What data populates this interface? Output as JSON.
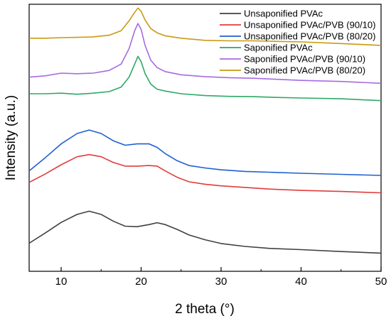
{
  "chart_data": {
    "type": "line",
    "xlabel": "2 theta (°)",
    "ylabel": "Intensity (a.u.)",
    "xlim": [
      6,
      50
    ],
    "x_ticks": [
      10,
      20,
      30,
      40,
      50
    ],
    "y_ticks_shown": false,
    "ylim": [
      0,
      100
    ],
    "grid": false,
    "legend_position": "top-right",
    "series": [
      {
        "name": "Unsaponified PVAc",
        "color": "#404040",
        "points": [
          [
            6,
            10.5
          ],
          [
            8,
            14.3
          ],
          [
            10,
            18.3
          ],
          [
            12,
            21.3
          ],
          [
            13.5,
            22.5
          ],
          [
            15,
            21.3
          ],
          [
            16.5,
            18.8
          ],
          [
            18,
            16.9
          ],
          [
            19.5,
            16.7
          ],
          [
            21,
            17.5
          ],
          [
            22,
            18.2
          ],
          [
            23,
            17.5
          ],
          [
            24.5,
            15.7
          ],
          [
            26,
            13.6
          ],
          [
            28,
            11.8
          ],
          [
            30,
            10.4
          ],
          [
            33,
            9.3
          ],
          [
            36,
            8.6
          ],
          [
            40,
            8.1
          ],
          [
            45,
            7.4
          ],
          [
            50,
            6.8
          ]
        ]
      },
      {
        "name": "Unsaponified PVAc/PVB (90/10)",
        "color": "#e03c3c",
        "points": [
          [
            6,
            33.3
          ],
          [
            8,
            36.4
          ],
          [
            10,
            39.9
          ],
          [
            12,
            42.9
          ],
          [
            13.5,
            43.7
          ],
          [
            15,
            42.9
          ],
          [
            16.5,
            40.8
          ],
          [
            18,
            39.4
          ],
          [
            19.5,
            39.4
          ],
          [
            21,
            39.6
          ],
          [
            22,
            39.4
          ],
          [
            23,
            37.6
          ],
          [
            24.5,
            35.2
          ],
          [
            26,
            33.5
          ],
          [
            28,
            32.6
          ],
          [
            30,
            32.0
          ],
          [
            33,
            31.4
          ],
          [
            36,
            30.8
          ],
          [
            40,
            30.3
          ],
          [
            45,
            29.9
          ],
          [
            50,
            29.4
          ]
        ]
      },
      {
        "name": "Unsaponified PVAc/PVB (80/20)",
        "color": "#1f5fd0",
        "points": [
          [
            6,
            37.6
          ],
          [
            8,
            42.5
          ],
          [
            10,
            47.7
          ],
          [
            12,
            51.6
          ],
          [
            13.5,
            52.9
          ],
          [
            15,
            51.6
          ],
          [
            16.5,
            48.9
          ],
          [
            18,
            47.2
          ],
          [
            19.5,
            47.7
          ],
          [
            21,
            47.7
          ],
          [
            22,
            46.4
          ],
          [
            23,
            44.1
          ],
          [
            24.5,
            41.4
          ],
          [
            26,
            39.6
          ],
          [
            28,
            38.7
          ],
          [
            30,
            38.0
          ],
          [
            33,
            37.4
          ],
          [
            36,
            37.1
          ],
          [
            40,
            36.7
          ],
          [
            45,
            36.3
          ],
          [
            50,
            35.9
          ]
        ]
      },
      {
        "name": "Saponified PVAc",
        "color": "#2ea866",
        "points": [
          [
            6,
            66.5
          ],
          [
            8,
            66.5
          ],
          [
            10,
            66.7
          ],
          [
            12,
            66.3
          ],
          [
            14,
            66.7
          ],
          [
            16,
            67.3
          ],
          [
            17.5,
            69.0
          ],
          [
            18.5,
            72.7
          ],
          [
            19.2,
            77.6
          ],
          [
            19.6,
            80.5
          ],
          [
            20.0,
            78.5
          ],
          [
            20.5,
            74.0
          ],
          [
            21.2,
            70.1
          ],
          [
            22,
            68.2
          ],
          [
            23,
            67.5
          ],
          [
            25,
            66.5
          ],
          [
            28,
            65.8
          ],
          [
            31,
            65.5
          ],
          [
            34,
            65.4
          ],
          [
            37,
            65.1
          ],
          [
            40,
            64.9
          ],
          [
            45,
            64.6
          ],
          [
            50,
            63.9
          ]
        ]
      },
      {
        "name": "Saponified PVAc/PVB (90/10)",
        "color": "#a86ae0",
        "points": [
          [
            6,
            72.7
          ],
          [
            8,
            73.2
          ],
          [
            10,
            74.2
          ],
          [
            12,
            74.0
          ],
          [
            14,
            74.2
          ],
          [
            16,
            75.2
          ],
          [
            17.5,
            77.6
          ],
          [
            18.5,
            83.4
          ],
          [
            19.2,
            90.1
          ],
          [
            19.6,
            92.8
          ],
          [
            20.0,
            90.6
          ],
          [
            20.5,
            84.6
          ],
          [
            21.2,
            79.1
          ],
          [
            22,
            76.3
          ],
          [
            23,
            74.8
          ],
          [
            25,
            73.6
          ],
          [
            28,
            72.9
          ],
          [
            31,
            72.5
          ],
          [
            34,
            72.3
          ],
          [
            37,
            71.9
          ],
          [
            40,
            71.5
          ],
          [
            45,
            71.1
          ],
          [
            50,
            70.4
          ]
        ]
      },
      {
        "name": "Saponified PVAc/PVB (80/20)",
        "color": "#c99a10",
        "points": [
          [
            6,
            87.3
          ],
          [
            8,
            87.3
          ],
          [
            10,
            87.5
          ],
          [
            12,
            87.6
          ],
          [
            14,
            87.8
          ],
          [
            16,
            88.4
          ],
          [
            17.5,
            90.1
          ],
          [
            18.5,
            93.8
          ],
          [
            19.2,
            97.0
          ],
          [
            19.6,
            98.6
          ],
          [
            20.0,
            97.4
          ],
          [
            20.5,
            94.1
          ],
          [
            21.2,
            90.9
          ],
          [
            22,
            89.3
          ],
          [
            23,
            88.2
          ],
          [
            25,
            87.3
          ],
          [
            28,
            86.5
          ],
          [
            31,
            86.3
          ],
          [
            34,
            86.3
          ],
          [
            37,
            86.1
          ],
          [
            40,
            85.9
          ],
          [
            45,
            85.3
          ],
          [
            50,
            84.6
          ]
        ]
      }
    ]
  }
}
